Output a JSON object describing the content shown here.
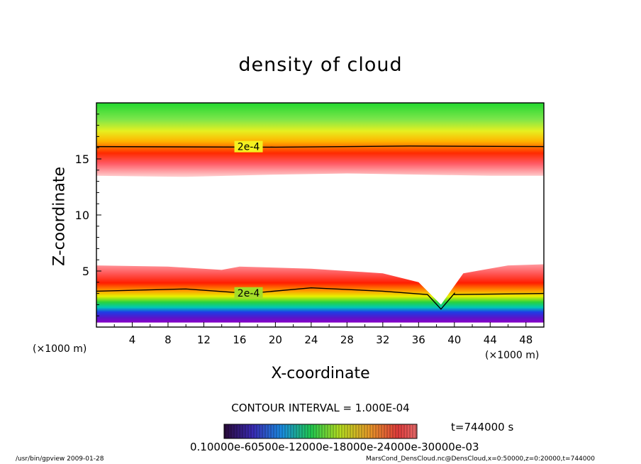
{
  "chart_data": {
    "type": "heatmap",
    "title": "density of cloud",
    "xlabel": "X-coordinate",
    "ylabel": "Z-coordinate",
    "x_unit": "(×1000 m)",
    "xlim": [
      0,
      50
    ],
    "ylim": [
      0,
      20
    ],
    "x_ticks": [
      4,
      8,
      12,
      16,
      20,
      24,
      28,
      32,
      36,
      40,
      44,
      48
    ],
    "y_ticks": [
      5,
      10,
      15
    ],
    "colormap": [
      "#6a00c8",
      "#2030e0",
      "#00b4e6",
      "#00d23c",
      "#f0f000",
      "#ff8c00",
      "#ff0000",
      "#ffffff"
    ],
    "color_range": [
      0.0001,
      0.0003
    ],
    "layers": [
      {
        "name": "upper",
        "z_bottom": 13.5,
        "z_top": 20,
        "peak_density": 0.0003
      },
      {
        "name": "lower",
        "z_bottom": 1.0,
        "z_top": 5.5,
        "peak_density": 0.0003
      }
    ],
    "upper_layer_bottom": {
      "x": [
        0,
        10,
        20,
        28,
        36,
        44,
        50
      ],
      "z": [
        13.5,
        13.4,
        13.6,
        13.7,
        13.6,
        13.5,
        13.5
      ]
    },
    "lower_layer_top": {
      "x": [
        0,
        8,
        14,
        16,
        24,
        32,
        36,
        38.5,
        41,
        46,
        50
      ],
      "z": [
        5.5,
        5.4,
        5.1,
        5.4,
        5.2,
        4.8,
        4.0,
        2.0,
        4.8,
        5.5,
        5.6
      ]
    },
    "contours": [
      {
        "level": "2e-4",
        "label_x": 17,
        "z_upper": 16.1,
        "x": [
          0,
          10,
          17,
          24,
          32,
          40,
          50
        ],
        "z": [
          3.2,
          3.4,
          3.0,
          3.5,
          3.2,
          3.0,
          3.0
        ]
      }
    ],
    "dip_x": 38.5,
    "contour_interval_text": "CONTOUR INTERVAL = 1.000E-04",
    "time_label": "t=744000 s",
    "colorbar_ticks_text": "0.10000e-60500e-12000e-18000e-24000e-30000e-03"
  },
  "footer": {
    "left": "/usr/bin/gpview   2009-01-28",
    "right": "MarsCond_DensCloud.nc@DensCloud,x=0:50000,z=0:20000,t=744000"
  }
}
